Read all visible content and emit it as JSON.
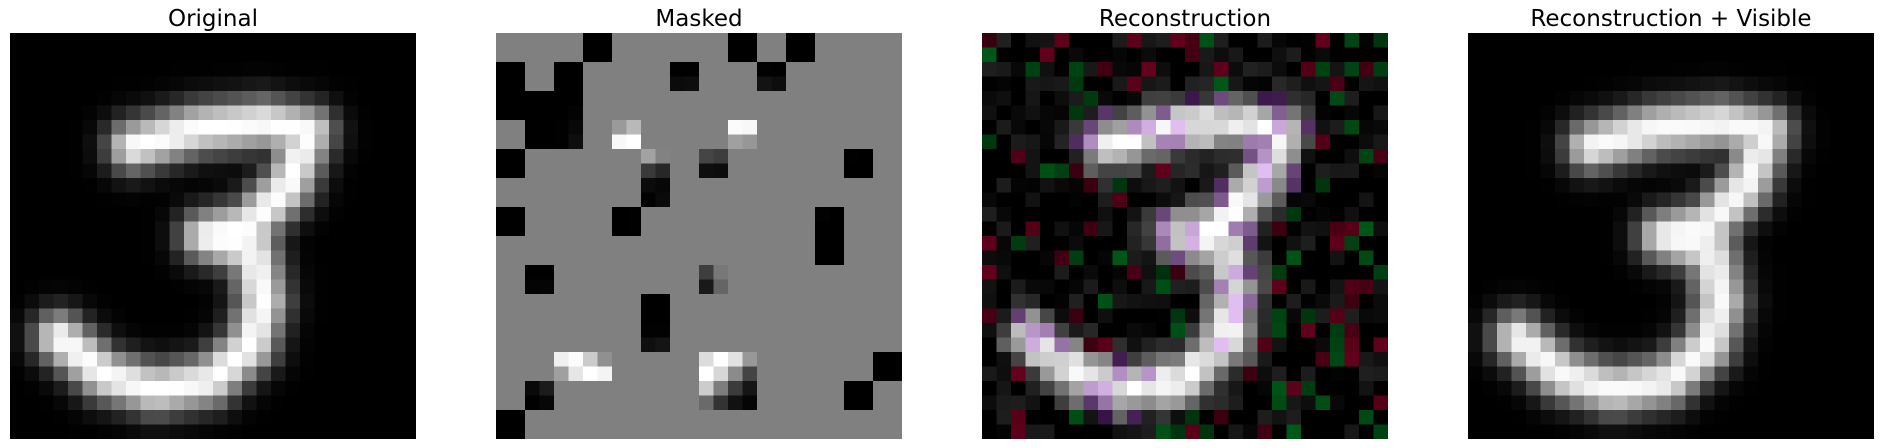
{
  "figure": {
    "panels": [
      {
        "id": "original",
        "title": "Original",
        "grid": 28,
        "mode": "digit"
      },
      {
        "id": "masked",
        "title": "Masked",
        "grid": 28,
        "mode": "masked",
        "mask_gray": "#808080",
        "patch_size": 2
      },
      {
        "id": "reconstruction",
        "title": "Reconstruction",
        "grid": 28,
        "mode": "recon"
      },
      {
        "id": "reconstruction-visible",
        "title": "Reconstruction + Visible",
        "grid": 28,
        "mode": "blend"
      }
    ],
    "colors": {
      "background": "#000000",
      "stroke": "#ffffff",
      "mask": "#808080"
    }
  }
}
